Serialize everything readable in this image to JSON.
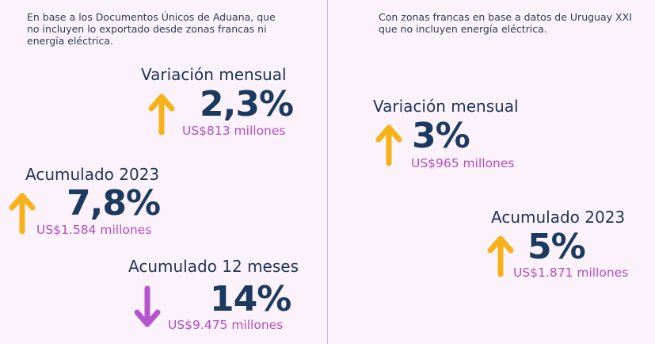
{
  "colors": {
    "background": "#fbf2fb",
    "text_dark": "#1c3a5e",
    "amount": "#b14fbf",
    "arrow_up": "#f5b21b",
    "arrow_down": "#b656cf",
    "divider": "#c9bcd3"
  },
  "left": {
    "note": "En base a los Documentos Únicos de Aduana, que no incluyen lo exportado desde zonas francas ni energía eléctrica.",
    "metrics": [
      {
        "label": "Variación mensual",
        "value": "2,3%",
        "amount": "US$813 millones",
        "direction": "up",
        "icon": "arrow-up-icon"
      },
      {
        "label": "Acumulado 2023",
        "value": "7,8%",
        "amount": "US$1.584 millones",
        "direction": "up",
        "icon": "arrow-up-icon"
      },
      {
        "label": "Acumulado 12 meses",
        "value": "14%",
        "amount": "US$9.475 millones",
        "direction": "down",
        "icon": "arrow-down-icon"
      }
    ]
  },
  "right": {
    "note": "Con zonas francas en base a datos de Uruguay XXI que no incluyen energía eléctrica.",
    "metrics": [
      {
        "label": "Variación mensual",
        "value": "3%",
        "amount": "US$965 millones",
        "direction": "up",
        "icon": "arrow-up-icon"
      },
      {
        "label": "Acumulado 2023",
        "value": "5%",
        "amount": "US$1.871 millones",
        "direction": "up",
        "icon": "arrow-up-icon"
      }
    ]
  }
}
